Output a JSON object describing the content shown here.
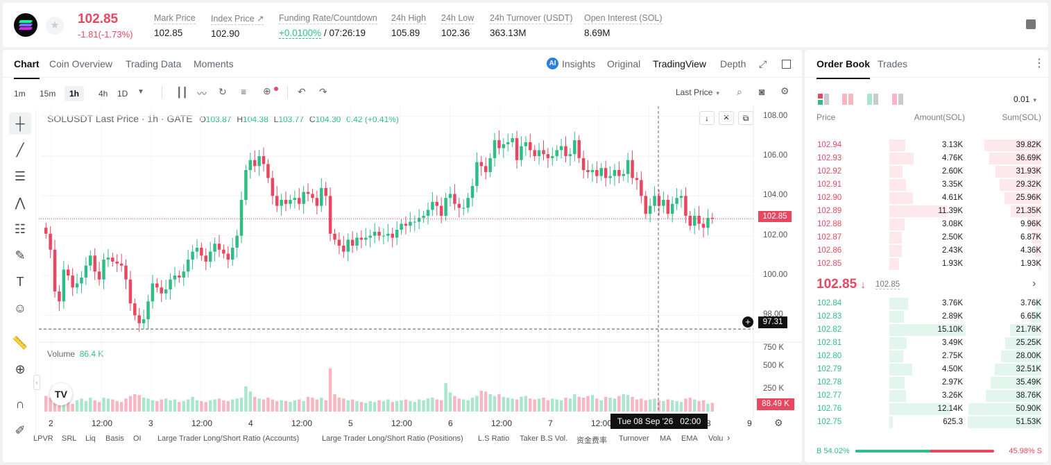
{
  "ticker": {
    "price": "102.85",
    "change": "-1.81(-1.73%)",
    "stats": [
      {
        "label": "Mark Price",
        "value": "102.85"
      },
      {
        "label": "Index Price ↗",
        "value": "102.90"
      },
      {
        "label": "Funding Rate/Countdown",
        "value_green": "+0.0100%",
        "value_rest": " / 07:26:19"
      },
      {
        "label": "24h High",
        "value": "105.89"
      },
      {
        "label": "24h Low",
        "value": "102.36"
      },
      {
        "label": "24h Turnover (USDT)",
        "value": "363.13M"
      },
      {
        "label": "Open Interest (SOL)",
        "value": "8.69M"
      }
    ]
  },
  "chart_tabs": [
    "Chart",
    "Coin Overview",
    "Trading Data",
    "Moments"
  ],
  "view_tabs": {
    "insights": "Insights",
    "original": "Original",
    "tradingview": "TradingView",
    "depth": "Depth"
  },
  "timeframes": [
    "1m",
    "15m",
    "1h",
    "4h",
    "1D"
  ],
  "price_type": "Last Price",
  "legend": {
    "symbol": "SOLUSDT Last Price · 1h · GATE",
    "o_label": "O",
    "o": "103.87",
    "h_label": "H",
    "h": "104.38",
    "l_label": "L",
    "l": "103.77",
    "c_label": "C",
    "c": "104.30",
    "chg": "0.42 (+0.41%)"
  },
  "volume_legend": {
    "label": "Volume",
    "value": "86.4 K"
  },
  "chart_data": {
    "type": "candlestick",
    "symbol": "SOLUSDT",
    "interval": "1h",
    "y_ticks": [
      "108.00",
      "106.00",
      "104.00",
      "102.00",
      "100.00",
      "98.00"
    ],
    "ylim": [
      97.0,
      108.3
    ],
    "volume_ticks": [
      "750 K",
      "500 K",
      "250 K"
    ],
    "x_ticks": [
      "2",
      "12:00",
      "3",
      "12:00",
      "4",
      "12:00",
      "5",
      "12:00",
      "6",
      "12:00",
      "7",
      "12:00",
      "8",
      "9"
    ],
    "last_price_label": "102.85",
    "crosshair_price_label": "97.31",
    "crosshair_time_label": "Tue 08 Sep '26   02:00",
    "volume_last_label": "88.49 K",
    "closes": [
      102.1,
      101.3,
      99.2,
      98.7,
      100.3,
      100.0,
      99.4,
      99.6,
      99.9,
      100.5,
      101.0,
      100.2,
      99.8,
      100.8,
      100.9,
      100.7,
      100.6,
      100.5,
      99.8,
      98.6,
      98.0,
      97.6,
      97.8,
      98.7,
      99.6,
      99.4,
      99.1,
      99.3,
      99.8,
      100.0,
      99.9,
      100.2,
      100.8,
      101.2,
      101.4,
      101.0,
      100.7,
      101.2,
      101.6,
      101.3,
      101.1,
      100.8,
      101.4,
      102.0,
      103.8,
      105.3,
      105.8,
      105.5,
      106.0,
      105.6,
      104.9,
      104.0,
      103.5,
      103.8,
      103.6,
      103.8,
      103.9,
      103.6,
      104.2,
      104.1,
      103.9,
      103.5,
      104.4,
      104.0,
      102.1,
      101.8,
      101.5,
      101.2,
      101.8,
      101.5,
      101.9,
      101.8,
      101.9,
      102.0,
      102.2,
      102.0,
      102.0,
      102.1,
      101.9,
      102.3,
      102.6,
      102.5,
      102.7,
      102.7,
      102.9,
      103.0,
      103.3,
      103.7,
      103.5,
      103.0,
      103.9,
      104.1,
      103.6,
      103.4,
      103.4,
      103.9,
      104.5,
      105.7,
      105.5,
      105.2,
      105.9,
      106.8,
      106.4,
      106.6,
      106.7,
      106.9,
      105.8,
      106.5,
      106.7,
      106.3,
      106.0,
      106.3,
      106.1,
      105.9,
      106.0,
      106.3,
      106.5,
      106.0,
      106.1,
      106.8,
      105.9,
      105.3,
      105.2,
      105.3,
      105.0,
      105.4,
      104.9,
      105.0,
      105.3,
      105.0,
      105.1,
      105.8,
      104.9,
      104.8,
      104.0,
      103.1,
      103.5,
      104.0,
      103.5,
      103.8,
      103.1,
      103.6,
      103.9,
      104.0,
      103.0,
      102.5,
      103.0,
      102.6,
      102.4,
      102.9,
      102.85
    ],
    "volumes_k": [
      180,
      160,
      130,
      70,
      140,
      110,
      90,
      130,
      150,
      120,
      160,
      130,
      110,
      160,
      150,
      140,
      120,
      110,
      150,
      180,
      200,
      190,
      160,
      150,
      130,
      120,
      140,
      150,
      130,
      140,
      110,
      120,
      140,
      170,
      130,
      120,
      110,
      130,
      140,
      150,
      130,
      120,
      140,
      150,
      160,
      290,
      230,
      170,
      150,
      140,
      160,
      140,
      120,
      130,
      120,
      110,
      130,
      140,
      120,
      170,
      160,
      140,
      160,
      130,
      500,
      200,
      160,
      150,
      130,
      140,
      120,
      110,
      100,
      120,
      110,
      130,
      120,
      140,
      110,
      120,
      130,
      140,
      120,
      110,
      140,
      130,
      150,
      160,
      140,
      130,
      330,
      220,
      180,
      150,
      140,
      130,
      160,
      180,
      240,
      230,
      200,
      180,
      200,
      170,
      160,
      150,
      140,
      170,
      180,
      150,
      140,
      150,
      160,
      130,
      150,
      140,
      130,
      160,
      150,
      200,
      170,
      160,
      180,
      190,
      150,
      130,
      170,
      160,
      150,
      180,
      200,
      190,
      170,
      140,
      150,
      130,
      140,
      150,
      130,
      120,
      140,
      130,
      120,
      110,
      150,
      160,
      140,
      120,
      130,
      90
    ]
  },
  "bottom_indicators": [
    "LPVR",
    "SRL",
    "Liq",
    "Basis",
    "OI",
    "Large Trader Long/Short Ratio (Accounts)",
    "Large Trader Long/Short Ratio (Positions)",
    "L.S Ratio",
    "Taker B.S Vol.",
    "资金费率",
    "Turnover",
    "MA",
    "EMA",
    "Volu"
  ],
  "orderbook": {
    "tabs": [
      "Order Book",
      "Trades"
    ],
    "precision": "0.01",
    "headers": [
      "Price",
      "Amount(SOL)",
      "Sum(SOL)"
    ],
    "asks": [
      {
        "price": "102.94",
        "amount": "3.13K",
        "sum": "39.82K"
      },
      {
        "price": "102.93",
        "amount": "4.76K",
        "sum": "36.69K"
      },
      {
        "price": "102.92",
        "amount": "2.60K",
        "sum": "31.93K"
      },
      {
        "price": "102.91",
        "amount": "3.35K",
        "sum": "29.32K"
      },
      {
        "price": "102.90",
        "amount": "4.61K",
        "sum": "25.96K"
      },
      {
        "price": "102.89",
        "amount": "11.39K",
        "sum": "21.35K"
      },
      {
        "price": "102.88",
        "amount": "3.08K",
        "sum": "9.96K"
      },
      {
        "price": "102.87",
        "amount": "2.50K",
        "sum": "6.87K"
      },
      {
        "price": "102.86",
        "amount": "2.43K",
        "sum": "4.36K"
      },
      {
        "price": "102.85",
        "amount": "1.93K",
        "sum": "1.93K"
      }
    ],
    "mid_price": "102.85",
    "mid_mark": "102.85",
    "bids": [
      {
        "price": "102.84",
        "amount": "3.76K",
        "sum": "3.76K"
      },
      {
        "price": "102.83",
        "amount": "2.89K",
        "sum": "6.65K"
      },
      {
        "price": "102.82",
        "amount": "15.10K",
        "sum": "21.76K"
      },
      {
        "price": "102.81",
        "amount": "3.49K",
        "sum": "25.25K"
      },
      {
        "price": "102.80",
        "amount": "2.75K",
        "sum": "28.00K"
      },
      {
        "price": "102.79",
        "amount": "4.50K",
        "sum": "32.51K"
      },
      {
        "price": "102.78",
        "amount": "2.97K",
        "sum": "35.49K"
      },
      {
        "price": "102.77",
        "amount": "3.26K",
        "sum": "38.76K"
      },
      {
        "price": "102.76",
        "amount": "12.14K",
        "sum": "50.90K"
      },
      {
        "price": "102.75",
        "amount": "625.3",
        "sum": "51.53K"
      }
    ],
    "buy_ratio": "B 54.02%",
    "sell_ratio": "45.98% S",
    "buy_fraction": 0.5402
  },
  "colors": {
    "up": "#2ebd85",
    "down": "#e8475f",
    "up_light": "#a9e6cd",
    "down_light": "#f7b6c2"
  }
}
